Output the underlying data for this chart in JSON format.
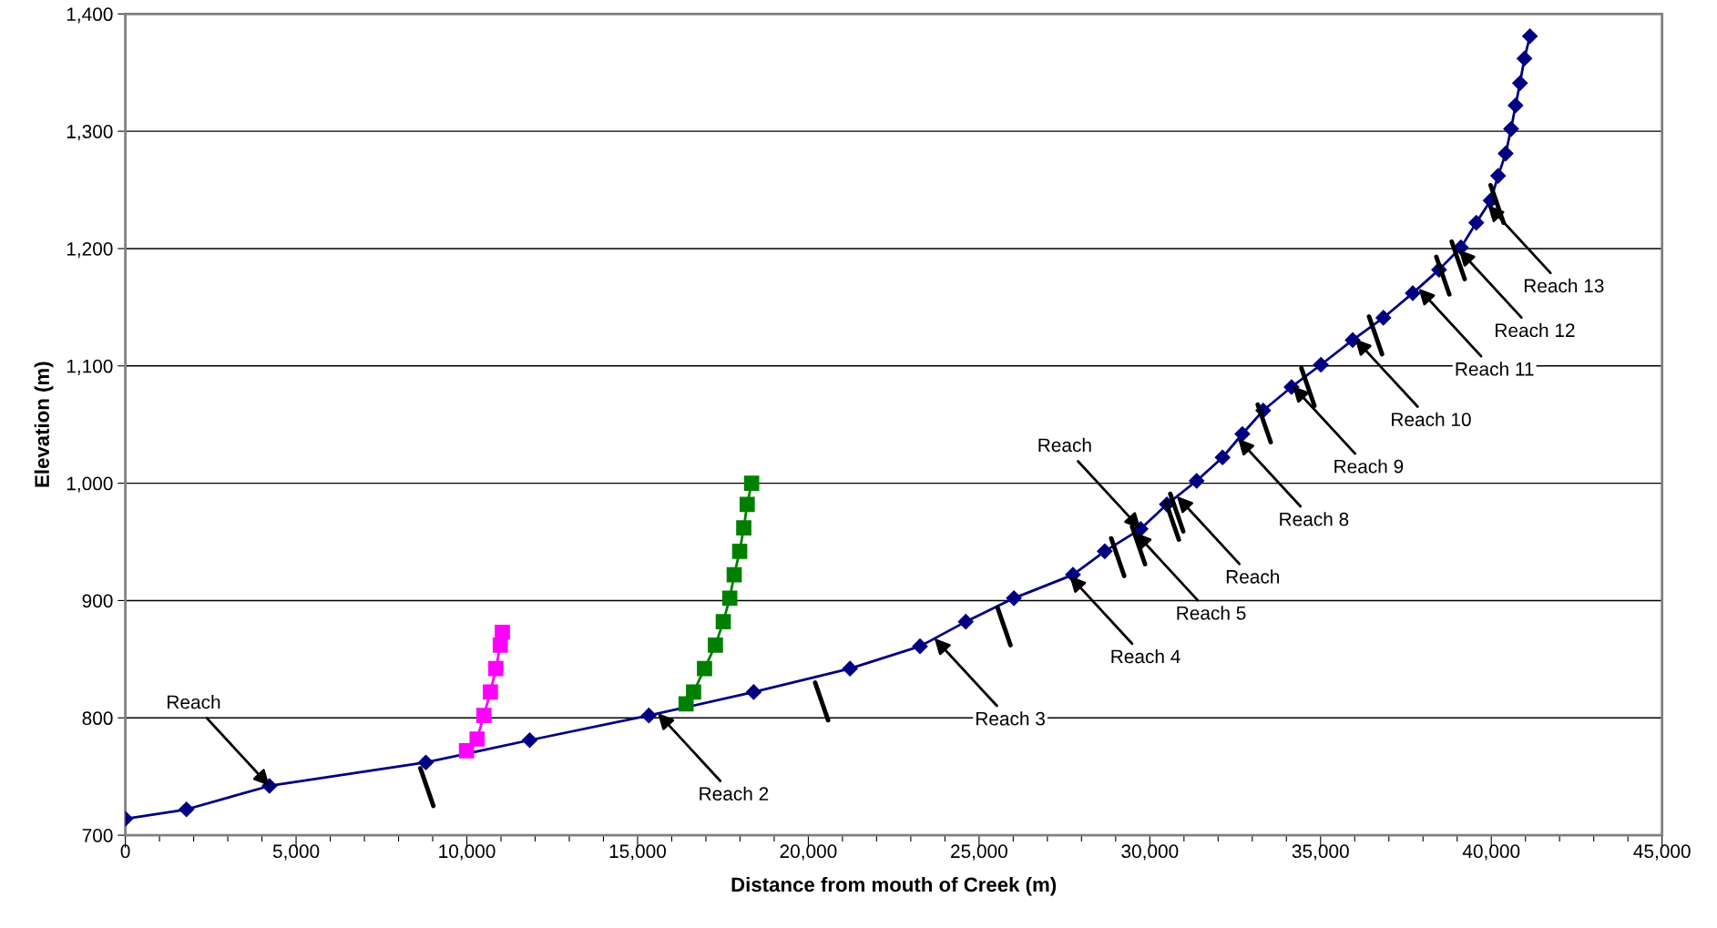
{
  "chart_data": {
    "type": "line",
    "xlabel": "Distance from mouth of Creek (m)",
    "ylabel": "Elevation (m)",
    "xlim": [
      0,
      45000
    ],
    "ylim": [
      700,
      1400
    ],
    "xticks": [
      0,
      {
        "value": 1000,
        "label": null
      },
      {
        "value": 2000,
        "label": null
      },
      {
        "value": 3000,
        "label": null
      },
      {
        "value": 4000,
        "label": null
      },
      {
        "value": 5000,
        "label": "5,000"
      },
      {
        "value": 6000,
        "label": null
      },
      {
        "value": 7000,
        "label": null
      },
      {
        "value": 8000,
        "label": null
      },
      {
        "value": 9000,
        "label": null
      },
      {
        "value": 10000,
        "label": "10,000"
      },
      {
        "value": 11000,
        "label": null
      },
      {
        "value": 12000,
        "label": null
      },
      {
        "value": 13000,
        "label": null
      },
      {
        "value": 14000,
        "label": null
      },
      {
        "value": 15000,
        "label": "15,000"
      },
      {
        "value": 16000,
        "label": null
      },
      {
        "value": 17000,
        "label": null
      },
      {
        "value": 18000,
        "label": null
      },
      {
        "value": 19000,
        "label": null
      },
      {
        "value": 20000,
        "label": "20,000"
      },
      {
        "value": 21000,
        "label": null
      },
      {
        "value": 22000,
        "label": null
      },
      {
        "value": 23000,
        "label": null
      },
      {
        "value": 24000,
        "label": null
      },
      {
        "value": 25000,
        "label": "25,000"
      },
      {
        "value": 26000,
        "label": null
      },
      {
        "value": 27000,
        "label": null
      },
      {
        "value": 28000,
        "label": null
      },
      {
        "value": 29000,
        "label": null
      },
      {
        "value": 30000,
        "label": "30,000"
      },
      {
        "value": 31000,
        "label": null
      },
      {
        "value": 32000,
        "label": null
      },
      {
        "value": 33000,
        "label": null
      },
      {
        "value": 34000,
        "label": null
      },
      {
        "value": 35000,
        "label": "35,000"
      },
      {
        "value": 36000,
        "label": null
      },
      {
        "value": 37000,
        "label": null
      },
      {
        "value": 38000,
        "label": null
      },
      {
        "value": 39000,
        "label": null
      },
      {
        "value": 40000,
        "label": "40,000"
      },
      {
        "value": 41000,
        "label": null
      },
      {
        "value": 42000,
        "label": null
      },
      {
        "value": 43000,
        "label": null
      },
      {
        "value": 44000,
        "label": null
      },
      {
        "value": 45000,
        "label": "45,000"
      }
    ],
    "yticks": [
      700,
      800,
      900,
      {
        "value": 1000,
        "label": "1,000"
      },
      {
        "value": 1100,
        "label": "1,100"
      },
      {
        "value": 1200,
        "label": "1,200"
      },
      {
        "value": 1300,
        "label": "1,300"
      },
      {
        "value": 1400,
        "label": "1,400"
      }
    ],
    "grid": "y",
    "legend": false,
    "line_style": "solid",
    "series": [
      {
        "type": "line",
        "marker": "diamond",
        "color": "#000080",
        "x": [
          0,
          1790,
          4220,
          8800,
          11840,
          15330,
          18400,
          21220,
          23270,
          24610,
          26020,
          27750,
          28680,
          29730,
          30500,
          31370,
          32130,
          32710,
          33320,
          34150,
          35010,
          35940,
          36840,
          37700,
          38470,
          39110,
          39560,
          39980,
          40200,
          40420,
          40580,
          40710,
          40840,
          40970,
          41130
        ],
        "values": [
          714,
          722,
          742,
          762,
          781,
          802,
          822,
          842,
          861,
          882,
          902,
          922,
          942,
          961,
          982,
          1002,
          1022,
          1042,
          1062,
          1082,
          1101,
          1122,
          1141,
          1162,
          1182,
          1201,
          1222,
          1241,
          1262,
          1281,
          1302,
          1322,
          1341,
          1362,
          1381
        ]
      },
      {
        "type": "line",
        "marker": "square",
        "color": "#ff00ff",
        "x": [
          9990,
          10300,
          10500,
          10690,
          10850,
          10980,
          11040
        ],
        "values": [
          772,
          782,
          802,
          822,
          842,
          862,
          873
        ]
      },
      {
        "type": "line",
        "marker": "square",
        "color": "#008000",
        "x": [
          16420,
          16640,
          16960,
          17280,
          17510,
          17700,
          17830,
          17990,
          18110,
          18210,
          18340
        ],
        "values": [
          812,
          822,
          842,
          862,
          882,
          902,
          922,
          942,
          962,
          982,
          1000
        ]
      },
      {
        "color": "#000000",
        "x": [
          8640,
          9020
        ],
        "values": [
          757,
          725
        ]
      },
      {
        "color": "#000000",
        "x": [
          20200,
          20580
        ],
        "values": [
          830,
          798
        ]
      },
      {
        "color": "#000000",
        "x": [
          25540,
          25920
        ],
        "values": [
          894,
          862
        ]
      },
      {
        "color": "#000000",
        "x": [
          28870,
          29250
        ],
        "values": [
          953,
          921
        ]
      },
      {
        "color": "#000000",
        "x": [
          29480,
          29860
        ],
        "values": [
          963,
          931
        ]
      },
      {
        "color": "#000000",
        "x": [
          30470,
          30850
        ],
        "values": [
          984,
          952
        ]
      },
      {
        "color": "#000000",
        "x": [
          30600,
          30980
        ],
        "values": [
          991,
          959
        ]
      },
      {
        "color": "#000000",
        "x": [
          33160,
          33540
        ],
        "values": [
          1067,
          1035
        ]
      },
      {
        "color": "#000000",
        "x": [
          34440,
          34820
        ],
        "values": [
          1098,
          1066
        ]
      },
      {
        "color": "#000000",
        "x": [
          36420,
          36800
        ],
        "values": [
          1142,
          1110
        ]
      },
      {
        "color": "#000000",
        "x": [
          38390,
          38770
        ],
        "values": [
          1193,
          1161
        ]
      },
      {
        "color": "#000000",
        "x": [
          38840,
          39220
        ],
        "values": [
          1206,
          1174
        ]
      },
      {
        "color": "#000000",
        "x": [
          39980,
          40360
        ],
        "values": [
          1254,
          1222
        ]
      }
    ],
    "annotations": [
      {
        "text": "Reach",
        "x": 4220,
        "y": 742
      },
      {
        "text": "Reach 2",
        "x": 15590,
        "y": 804
      },
      {
        "text": "Reach 3",
        "x": 23690,
        "y": 868
      },
      {
        "text": "Reach 4",
        "x": 27650,
        "y": 921
      },
      {
        "text": "Reach 5",
        "x": 29570,
        "y": 958
      },
      {
        "text": "Reach",
        "x": 29730,
        "y": 961
      },
      {
        "text": "Reach",
        "x": 30790,
        "y": 989
      },
      {
        "text": "Reach 8",
        "x": 32580,
        "y": 1038
      },
      {
        "text": "Reach 9",
        "x": 34180,
        "y": 1083
      },
      {
        "text": "Reach 10",
        "x": 36010,
        "y": 1123
      },
      {
        "text": "Reach 11",
        "x": 37870,
        "y": 1166
      },
      {
        "text": "Reach 12",
        "x": 39050,
        "y": 1199
      },
      {
        "text": "Reach 13",
        "x": 39900,
        "y": 1237
      }
    ]
  }
}
